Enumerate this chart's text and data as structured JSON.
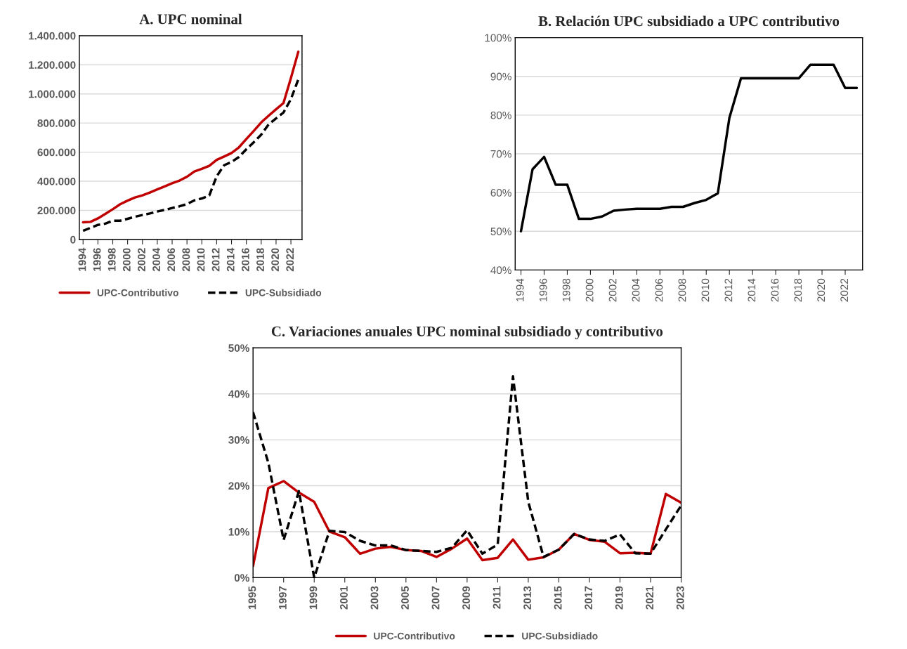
{
  "chart_data": [
    {
      "type": "line",
      "title": "A. UPC nominal",
      "x": [
        1994,
        1995,
        1996,
        1997,
        1998,
        1999,
        2000,
        2001,
        2002,
        2003,
        2004,
        2005,
        2006,
        2007,
        2008,
        2009,
        2010,
        2011,
        2012,
        2013,
        2014,
        2015,
        2016,
        2017,
        2018,
        2019,
        2020,
        2021,
        2022,
        2023
      ],
      "series": [
        {
          "name": "UPC-Contributivo",
          "color": "#c00000",
          "line_style": "solid",
          "values": [
            118000,
            121000,
            145000,
            176000,
            208000,
            242000,
            267000,
            289000,
            303000,
            323000,
            344000,
            365000,
            386000,
            405000,
            431000,
            467000,
            485000,
            506000,
            547000,
            570000,
            594000,
            633000,
            690000,
            746000,
            804000,
            850000,
            894000,
            937000,
            1108000,
            1290000
          ]
        },
        {
          "name": "UPC-Subsidiado",
          "color": "#000000",
          "line_style": "dashed",
          "values": [
            59000,
            80000,
            100000,
            109000,
            129000,
            129000,
            142000,
            156000,
            168000,
            179000,
            192000,
            203000,
            216000,
            228000,
            243000,
            269000,
            282000,
            302000,
            434000,
            510000,
            532000,
            567000,
            620000,
            668000,
            720000,
            791000,
            831000,
            872000,
            964000,
            1100000
          ]
        }
      ],
      "xlim": [
        1993.5,
        2023.5
      ],
      "xticks": [
        1994,
        1996,
        1998,
        2000,
        2002,
        2004,
        2006,
        2008,
        2010,
        2012,
        2014,
        2016,
        2018,
        2020,
        2022
      ],
      "ylim": [
        0,
        1400000
      ],
      "yticks": [
        {
          "value": 0,
          "label": "0"
        },
        {
          "value": 200000,
          "label": "200.000"
        },
        {
          "value": 400000,
          "label": "400.000"
        },
        {
          "value": 600000,
          "label": "600.000"
        },
        {
          "value": 800000,
          "label": "800.000"
        },
        {
          "value": 1000000,
          "label": "1.000.000"
        },
        {
          "value": 1200000,
          "label": "1.200.000"
        },
        {
          "value": 1400000,
          "label": "1.400.000"
        }
      ],
      "grid": "y",
      "legend": "bottom"
    },
    {
      "type": "line",
      "title": "B. Relación UPC subsidiado a UPC contributivo",
      "x": [
        1994,
        1995,
        1996,
        1997,
        1998,
        1999,
        2000,
        2001,
        2002,
        2003,
        2004,
        2005,
        2006,
        2007,
        2008,
        2009,
        2010,
        2011,
        2012,
        2013,
        2014,
        2015,
        2016,
        2017,
        2018,
        2019,
        2020,
        2021,
        2022,
        2023
      ],
      "series": [
        {
          "color": "#000000",
          "line_style": "solid",
          "values": [
            50,
            66,
            69.2,
            62,
            62,
            53.2,
            53.2,
            53.8,
            55.3,
            55.6,
            55.8,
            55.8,
            55.8,
            56.3,
            56.3,
            57.3,
            58.1,
            59.8,
            79.3,
            89.5,
            89.5,
            89.5,
            89.5,
            89.5,
            89.5,
            93,
            93,
            93,
            87,
            87
          ]
        }
      ],
      "xlim": [
        1993.5,
        2023.5
      ],
      "xticks": [
        1994,
        1996,
        1998,
        2000,
        2002,
        2004,
        2006,
        2008,
        2010,
        2012,
        2014,
        2016,
        2018,
        2020,
        2022
      ],
      "ylim": [
        40,
        100
      ],
      "yticks": [
        {
          "value": 40,
          "label": "40%"
        },
        {
          "value": 50,
          "label": "50%"
        },
        {
          "value": 60,
          "label": "60%"
        },
        {
          "value": 70,
          "label": "70%"
        },
        {
          "value": 80,
          "label": "80%"
        },
        {
          "value": 90,
          "label": "90%"
        },
        {
          "value": 100,
          "label": "100%"
        }
      ],
      "grid": "y"
    },
    {
      "type": "line",
      "title": "C. Variaciones anuales UPC nominal subsidiado y contributivo",
      "x": [
        1995,
        1996,
        1997,
        1998,
        1999,
        2000,
        2001,
        2002,
        2003,
        2004,
        2005,
        2006,
        2007,
        2008,
        2009,
        2010,
        2011,
        2012,
        2013,
        2014,
        2015,
        2016,
        2017,
        2018,
        2019,
        2020,
        2021,
        2022,
        2023
      ],
      "series": [
        {
          "name": "UPC-Contributivo",
          "color": "#c00000",
          "line_style": "solid",
          "values": [
            2.5,
            19.5,
            21,
            18.5,
            16.5,
            10,
            8.8,
            5.2,
            6.3,
            6.7,
            6,
            5.8,
            4.5,
            6.3,
            8.5,
            3.8,
            4.3,
            8.3,
            3.9,
            4.4,
            6.1,
            9.5,
            8.2,
            7.8,
            5.3,
            5.4,
            5.2,
            18.2,
            16.3
          ]
        },
        {
          "name": "UPC-Subsidiado",
          "color": "#000000",
          "line_style": "dashed",
          "values": [
            36,
            25,
            8.2,
            18.8,
            0,
            10.2,
            9.9,
            8,
            7,
            7,
            6,
            5.8,
            5.6,
            6.5,
            10.3,
            5.2,
            7.2,
            43.8,
            16.5,
            4.5,
            6.1,
            9.5,
            8.3,
            8,
            9.4,
            5.3,
            5.2,
            10.5,
            15.7
          ]
        }
      ],
      "xlim": [
        1995,
        2023
      ],
      "xticks": [
        1995,
        1997,
        1999,
        2001,
        2003,
        2005,
        2007,
        2009,
        2011,
        2013,
        2015,
        2017,
        2019,
        2021,
        2023
      ],
      "ylim": [
        0,
        50
      ],
      "yticks": [
        {
          "value": 0,
          "label": "0%"
        },
        {
          "value": 10,
          "label": "10%"
        },
        {
          "value": 20,
          "label": "20%"
        },
        {
          "value": 30,
          "label": "30%"
        },
        {
          "value": 40,
          "label": "40%"
        },
        {
          "value": 50,
          "label": "50%"
        }
      ],
      "grid": "y",
      "legend": "bottom"
    }
  ]
}
